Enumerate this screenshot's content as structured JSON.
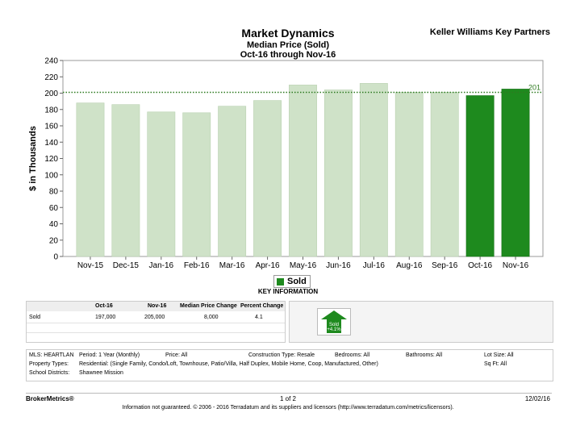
{
  "chart_data": {
    "type": "bar",
    "title": "Market Dynamics",
    "subtitle": "Median Price (Sold)",
    "subtitle2": "Oct-16 through Nov-16",
    "ylabel": "$ in Thousands",
    "xlabel": "",
    "ylim": [
      0,
      240
    ],
    "yticks": [
      0,
      20,
      40,
      60,
      80,
      100,
      120,
      140,
      160,
      180,
      200,
      220,
      240
    ],
    "categories": [
      "Nov-15",
      "Dec-15",
      "Jan-16",
      "Feb-16",
      "Mar-16",
      "Apr-16",
      "May-16",
      "Jun-16",
      "Jul-16",
      "Aug-16",
      "Sep-16",
      "Oct-16",
      "Nov-16"
    ],
    "series": [
      {
        "name": "Sold",
        "values": [
          188,
          186,
          177,
          176,
          184,
          191,
          210,
          204,
          212,
          201,
          201,
          197,
          205
        ]
      }
    ],
    "highlighted_categories": [
      "Oct-16",
      "Nov-16"
    ],
    "reference_line": {
      "value": 201,
      "label": "201",
      "style": "dotted"
    },
    "colors": {
      "bar": "#cfe2c8",
      "highlight": "#1e8a1e",
      "reference": "#2d7a1f"
    },
    "grid": false,
    "legend": "bottom-center"
  },
  "header": {
    "brand": "Keller Williams Key Partners"
  },
  "key_info": {
    "heading": "KEY INFORMATION",
    "columns": [
      "Oct-16",
      "Nov-16",
      "Median Price Change",
      "Percent Change"
    ],
    "row": {
      "label": "Sold",
      "values": [
        "197,000",
        "205,000",
        "8,000",
        "4.1"
      ]
    },
    "arrow": {
      "label": "Sold",
      "change": "+4.1%",
      "direction": "up",
      "color": "#1e8a1e"
    }
  },
  "filters": {
    "mls": "MLS: HEARTLAN",
    "period": "Period:  1 Year (Monthly)",
    "price": "Price:  All",
    "construction": "Construction Type:  Resale",
    "bedrooms": "Bedrooms:  All",
    "bathrooms": "Bathrooms:  All",
    "lot_size": "Lot Size:  All",
    "property_types_label": "Property Types:",
    "property_types": "Residential: (Single Family, Condo/Loft, Townhouse, Patio/Villa, Half Duplex, Mobile Home, Coop, Manufactured, Other)",
    "sqft": "Sq Ft:  All",
    "school_label": "School Districts:",
    "school": "Shawnee Mission"
  },
  "footer": {
    "left": "BrokerMetrics®",
    "center": "1 of 2",
    "right": "12/02/16",
    "disclaimer": "Information not guaranteed.  © 2006 - 2016 Terradatum and its suppliers and licensors (http://www.terradatum.com/metrics/licensors)."
  }
}
